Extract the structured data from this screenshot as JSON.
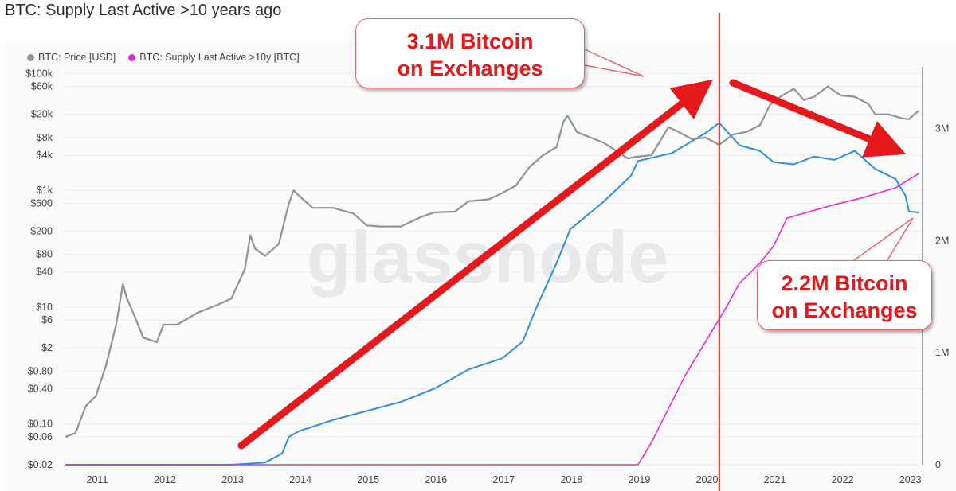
{
  "title": "BTC: Supply Last Active >10 years ago",
  "watermark": "glassnode",
  "legend": [
    {
      "label": "BTC: Price [USD]",
      "color": "#8c9597"
    },
    {
      "label": "BTC: Supply Last Active >10y [BTC]",
      "color": "#e42be0"
    }
  ],
  "annotations": {
    "top": [
      "3.1M Bitcoin",
      "on Exchanges"
    ],
    "bottom": [
      "2.2M Bitcoin",
      "on Exchanges"
    ],
    "event_line_year": 2020.2
  },
  "colors": {
    "price": "#8c9597",
    "supply": "#e42be0",
    "exchange": "#2e8fe0",
    "annotation_red": "#e5191b"
  },
  "chart_data": {
    "type": "line",
    "title": "BTC: Supply Last Active >10 years ago",
    "x_ticks": [
      "2011",
      "2012",
      "2013",
      "2014",
      "2015",
      "2016",
      "2017",
      "2018",
      "2019",
      "2020",
      "2021",
      "2022",
      "2023"
    ],
    "xlim": [
      2010.55,
      2023.2
    ],
    "y_left": {
      "scale": "log",
      "tick_labels": [
        "$100k",
        "$60k",
        "$20k",
        "$8k",
        "$4k",
        "$1k",
        "$600",
        "$200",
        "$80",
        "$40",
        "$10",
        "$6",
        "$2",
        "$0.80",
        "$0.40",
        "$0.10",
        "$0.06",
        "$0.02"
      ],
      "tick_values": [
        100000,
        60000,
        20000,
        8000,
        4000,
        1000,
        600,
        200,
        80,
        40,
        10,
        6,
        2,
        0.8,
        0.4,
        0.1,
        0.06,
        0.02
      ],
      "range": [
        0.02,
        130000
      ]
    },
    "y_right": {
      "tick_labels": [
        "3M",
        "2M",
        "1M",
        "0"
      ],
      "tick_values": [
        3000000,
        2000000,
        1000000,
        0
      ],
      "range": [
        0,
        3550000
      ]
    },
    "grid": "horizontal",
    "legend_position": "top-left",
    "series": [
      {
        "name": "BTC: Price [USD]",
        "axis": "left",
        "x": [
          2010.55,
          2010.7,
          2010.85,
          2011.0,
          2011.15,
          2011.3,
          2011.4,
          2011.45,
          2011.55,
          2011.7,
          2011.9,
          2012.0,
          2012.2,
          2012.5,
          2012.8,
          2013.0,
          2013.2,
          2013.28,
          2013.35,
          2013.5,
          2013.7,
          2013.85,
          2013.92,
          2014.0,
          2014.2,
          2014.5,
          2014.8,
          2015.0,
          2015.2,
          2015.5,
          2015.8,
          2016.0,
          2016.3,
          2016.5,
          2016.8,
          2017.0,
          2017.2,
          2017.4,
          2017.6,
          2017.8,
          2017.9,
          2017.96,
          2018.1,
          2018.3,
          2018.5,
          2018.85,
          2018.95,
          2019.2,
          2019.45,
          2019.6,
          2019.8,
          2020.0,
          2020.2,
          2020.4,
          2020.6,
          2020.8,
          2020.95,
          2021.1,
          2021.3,
          2021.45,
          2021.6,
          2021.8,
          2021.9,
          2022.0,
          2022.2,
          2022.4,
          2022.5,
          2022.7,
          2022.9,
          2023.0,
          2023.1,
          2023.15
        ],
        "values": [
          0.06,
          0.07,
          0.2,
          0.3,
          1.0,
          5,
          25,
          15,
          8,
          3,
          2.5,
          5,
          5,
          8,
          11,
          14,
          45,
          170,
          100,
          75,
          120,
          600,
          1000,
          800,
          500,
          500,
          400,
          250,
          240,
          240,
          350,
          420,
          430,
          650,
          700,
          900,
          1200,
          2500,
          4000,
          5500,
          15000,
          19000,
          10000,
          8000,
          6500,
          3500,
          3700,
          4000,
          12000,
          10000,
          7500,
          8000,
          6000,
          9000,
          10000,
          13000,
          29000,
          40000,
          55000,
          35000,
          40000,
          60000,
          50000,
          42000,
          40000,
          30000,
          20000,
          20000,
          17000,
          16500,
          21000,
          23000
        ]
      },
      {
        "name": "BTC: Supply Last Active >10y [BTC]",
        "axis": "right",
        "x": [
          2010.55,
          2019.0,
          2019.2,
          2019.45,
          2019.7,
          2020.0,
          2020.3,
          2020.5,
          2020.8,
          2021.0,
          2021.2,
          2021.6,
          2021.9,
          2022.3,
          2022.8,
          2023.15
        ],
        "values": [
          0,
          0,
          200000,
          500000,
          800000,
          1100000,
          1400000,
          1620000,
          1800000,
          1950000,
          2200000,
          2270000,
          2320000,
          2380000,
          2470000,
          2600000
        ]
      },
      {
        "name": "",
        "axis": "right",
        "x": [
          2010.55,
          2013.0,
          2013.5,
          2013.75,
          2013.85,
          2014.0,
          2014.5,
          2015.0,
          2015.5,
          2016.0,
          2016.5,
          2017.0,
          2017.3,
          2017.5,
          2017.8,
          2018.0,
          2018.5,
          2018.9,
          2019.0,
          2019.5,
          2020.0,
          2020.2,
          2020.5,
          2020.8,
          2021.0,
          2021.3,
          2021.6,
          2021.9,
          2022.2,
          2022.5,
          2022.8,
          2022.95,
          2023.0,
          2023.15
        ],
        "values": [
          0,
          0,
          20000,
          100000,
          250000,
          300000,
          400000,
          480000,
          560000,
          680000,
          850000,
          950000,
          1100000,
          1400000,
          1800000,
          2100000,
          2350000,
          2580000,
          2710000,
          2780000,
          2960000,
          3050000,
          2850000,
          2800000,
          2700000,
          2680000,
          2750000,
          2720000,
          2800000,
          2640000,
          2550000,
          2400000,
          2260000,
          2250000
        ]
      }
    ]
  }
}
